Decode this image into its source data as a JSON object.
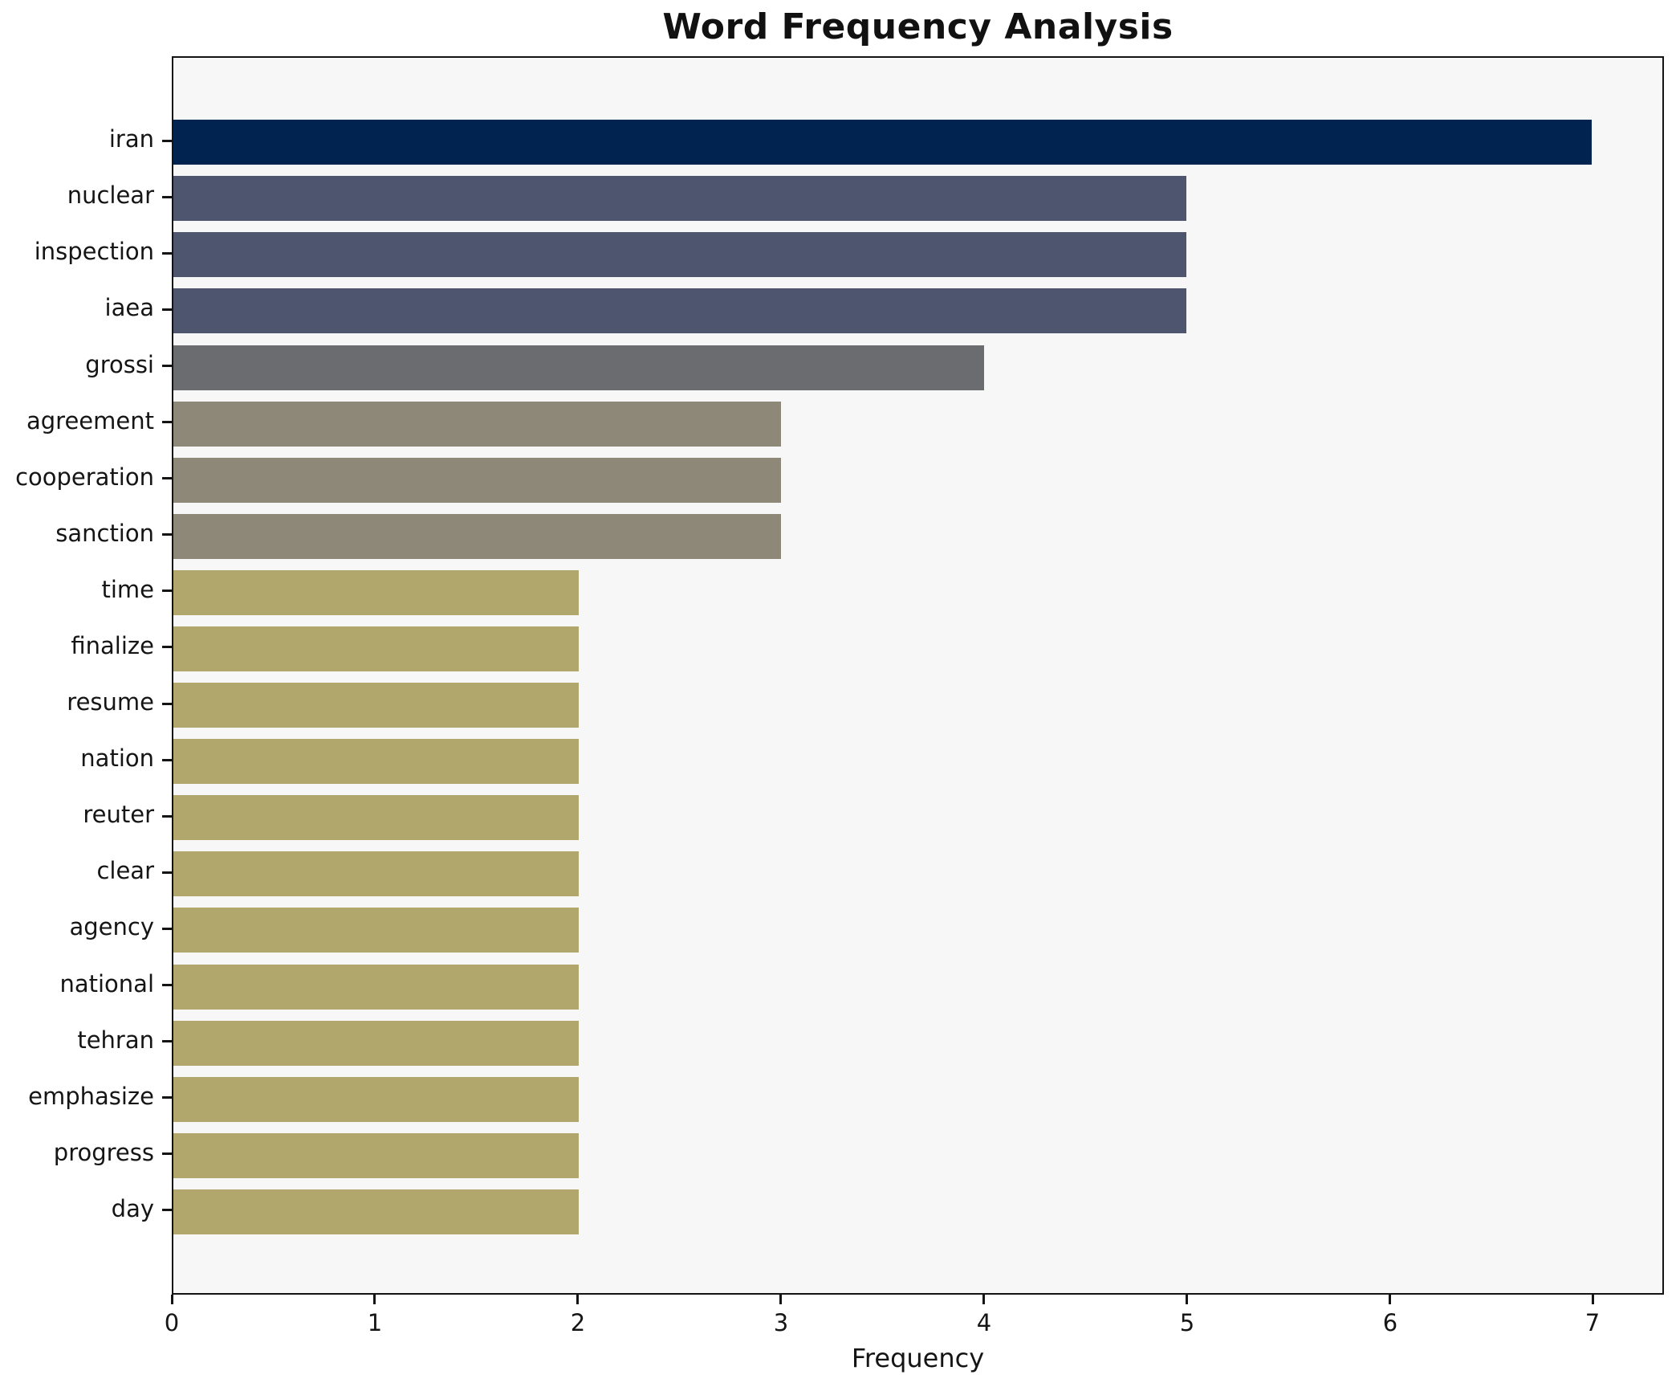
{
  "chart_data": {
    "type": "bar",
    "orientation": "horizontal",
    "title": "Word Frequency Analysis",
    "xlabel": "Frequency",
    "ylabel": "",
    "categories": [
      "iran",
      "nuclear",
      "inspection",
      "iaea",
      "grossi",
      "agreement",
      "cooperation",
      "sanction",
      "time",
      "finalize",
      "resume",
      "nation",
      "reuter",
      "clear",
      "agency",
      "national",
      "tehran",
      "emphasize",
      "progress",
      "day"
    ],
    "values": [
      7,
      5,
      5,
      5,
      4,
      3,
      3,
      3,
      2,
      2,
      2,
      2,
      2,
      2,
      2,
      2,
      2,
      2,
      2,
      2
    ],
    "bar_colors": [
      "#01234f",
      "#4d566e",
      "#4d566e",
      "#4d566e",
      "#6b6c70",
      "#8e8878",
      "#8e8878",
      "#8e8878",
      "#b1a66c",
      "#b1a66c",
      "#b1a66c",
      "#b1a66c",
      "#b1a66c",
      "#b1a66c",
      "#b1a66c",
      "#b1a66c",
      "#b1a66c",
      "#b1a66c",
      "#b1a66c",
      "#b1a66c"
    ],
    "x_ticks": [
      0,
      1,
      2,
      3,
      4,
      5,
      6,
      7
    ],
    "xlim": [
      0,
      7.35
    ],
    "grid": false,
    "legend": null,
    "plot_background": "#f7f7f8",
    "spine_color": "#141414",
    "bar_height_fraction": 0.8
  }
}
